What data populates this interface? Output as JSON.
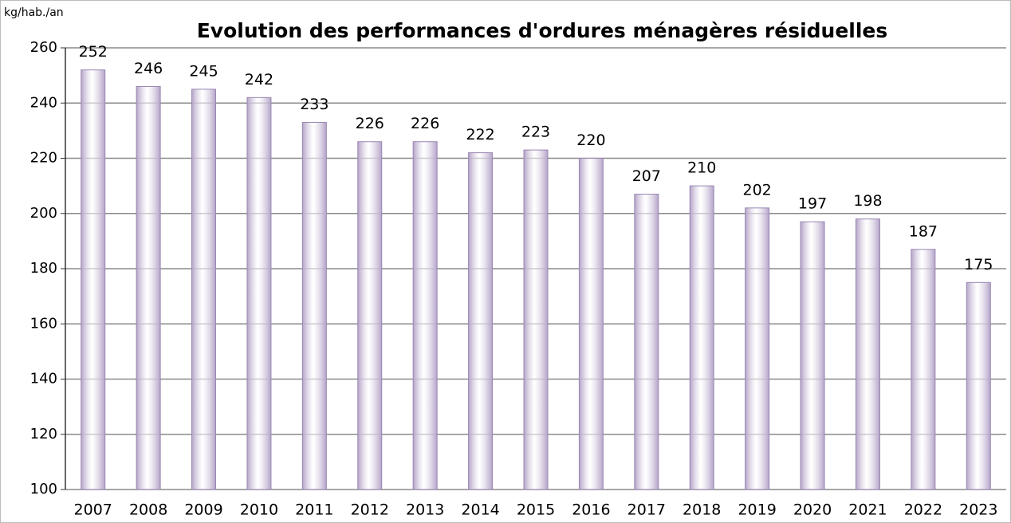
{
  "chart_data": {
    "type": "bar",
    "title": "Evolution des performances d'ordures ménagères résiduelles",
    "y_label": "kg/hab./an",
    "categories": [
      "2007",
      "2008",
      "2009",
      "2010",
      "2011",
      "2012",
      "2013",
      "2014",
      "2015",
      "2016",
      "2017",
      "2018",
      "2019",
      "2020",
      "2021",
      "2022",
      "2023"
    ],
    "values": [
      252,
      246,
      245,
      242,
      233,
      226,
      226,
      222,
      223,
      220,
      207,
      210,
      202,
      197,
      198,
      187,
      175
    ],
    "color": "#b3a2c7",
    "ylim": [
      100,
      260
    ],
    "yticks": [
      100,
      120,
      140,
      160,
      180,
      200,
      220,
      240,
      260
    ],
    "grid": true
  }
}
